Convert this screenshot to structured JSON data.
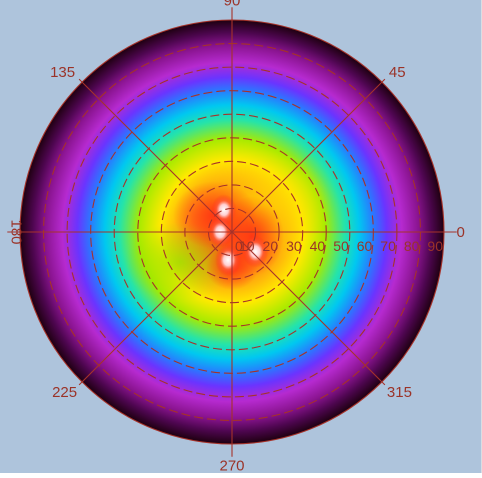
{
  "chart_data": {
    "type": "heatmap",
    "projection": "polar",
    "background_color": "#aec4dc",
    "grid_color": "#a6322a",
    "label_color": "#9b3328",
    "angle_unit": "degrees",
    "angular_labels": [
      "0",
      "45",
      "90",
      "135",
      "180",
      "225",
      "270",
      "315"
    ],
    "angular_ticks": [
      0,
      45,
      90,
      135,
      180,
      225,
      270,
      315
    ],
    "radial_labels": [
      "0",
      "10",
      "20",
      "30",
      "40",
      "50",
      "60",
      "70",
      "80",
      "90"
    ],
    "radial_ticks": [
      0,
      10,
      20,
      30,
      40,
      50,
      60,
      70,
      80,
      90
    ],
    "rlim": [
      0,
      90
    ],
    "grid": true,
    "radial_grid_style": "dashed",
    "colormap": [
      "#ffffff",
      "#ff3a1e",
      "#ffa500",
      "#ffff00",
      "#7be000",
      "#00e0e0",
      "#1e6cff",
      "#b41ec8",
      "#6e0a6e",
      "#1e0010"
    ],
    "hotspots": [
      {
        "theta": 110,
        "r": 10,
        "value": 0.95
      },
      {
        "theta": 320,
        "r": 13,
        "value": 1.0
      },
      {
        "theta": 262,
        "r": 12,
        "value": 1.0
      },
      {
        "theta": 180,
        "r": 5,
        "value": 0.95
      }
    ]
  }
}
